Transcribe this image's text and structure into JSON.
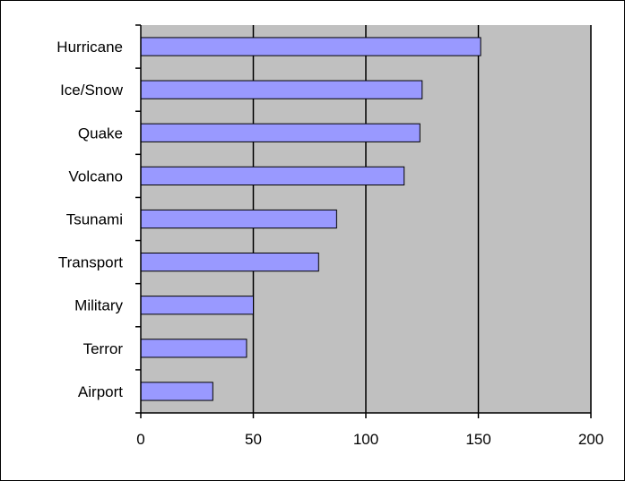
{
  "chart_data": {
    "type": "bar",
    "orientation": "horizontal",
    "categories": [
      "Hurricane",
      "Ice/Snow",
      "Quake",
      "Volcano",
      "Tsunami",
      "Transport",
      "Military",
      "Terror",
      "Airport"
    ],
    "values": [
      151,
      125,
      124,
      117,
      87,
      79,
      50,
      47,
      32
    ],
    "xlim": [
      0,
      200
    ],
    "xticks": [
      "0",
      "50",
      "100",
      "150",
      "200"
    ],
    "title": "",
    "xlabel": "",
    "ylabel": "",
    "grid": "vertical",
    "legend": "none",
    "colors": {
      "bar_fill": "#9999ff",
      "bar_stroke": "#000000",
      "plot_background": "#c0c0c0",
      "gridline": "#000000",
      "chart_border": "#000000"
    }
  }
}
